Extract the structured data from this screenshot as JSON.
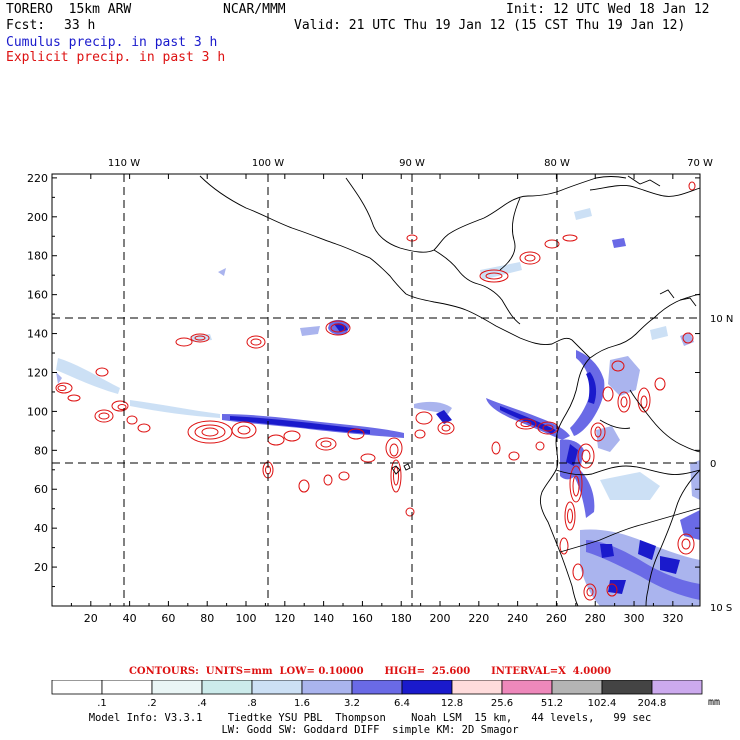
{
  "header": {
    "model_name": "TORERO  15km ARW",
    "center": "NCAR/MMM",
    "init": "Init: 12 UTC Wed 18 Jan 12",
    "fcst_label": "Fcst:",
    "fcst_hours": "33 h",
    "valid": "Valid: 21 UTC Thu 19 Jan 12 (15 CST Thu 19 Jan 12)",
    "cumulus_label": "Cumulus precip. in past 3 h",
    "explicit_label": "Explicit precip. in past 3 h"
  },
  "map": {
    "top_lon_labels": [
      "110 W",
      "100 W",
      "90 W",
      "80 W",
      "70 W"
    ],
    "right_lat_labels": [
      "10 N",
      "0",
      "10 S"
    ],
    "left_ticks": [
      "220",
      "200",
      "180",
      "160",
      "140",
      "120",
      "100",
      "80",
      "60",
      "40",
      "20"
    ],
    "bottom_ticks": [
      "20",
      "40",
      "60",
      "80",
      "100",
      "120",
      "140",
      "160",
      "180",
      "200",
      "220",
      "240",
      "260",
      "280",
      "300",
      "320"
    ],
    "colors": {
      "cumulus": "#1a1acc",
      "explicit": "#dd1111",
      "coast": "#000000",
      "grid": "#000000"
    }
  },
  "contours": {
    "text": "CONTOURS:  UNITS=mm  LOW= 0.10000      HIGH=  25.600      INTERVAL=X  4.0000"
  },
  "colorbar": {
    "labels": [
      ".1",
      ".2",
      ".4",
      ".8",
      "1.6",
      "3.2",
      "6.4",
      "12.8",
      "25.6",
      "51.2",
      "102.4",
      "204.8"
    ],
    "colors": [
      "#ffffff",
      "#ffffff",
      "#eaf6f6",
      "#ccebeb",
      "#cce0f5",
      "#aab4ee",
      "#6a6ae6",
      "#1a1acc",
      "#ffdcdc",
      "#ee88bb",
      "#b4b4b4",
      "#444444",
      "#ccaaee"
    ],
    "units": "mm"
  },
  "model_info": {
    "line1": "Model Info: V3.3.1    Tiedtke YSU PBL  Thompson    Noah LSM  15 km,   44 levels,   99 sec",
    "line2": "LW: Godd SW: Goddard DIFF  simple KM: 2D Smagor"
  }
}
